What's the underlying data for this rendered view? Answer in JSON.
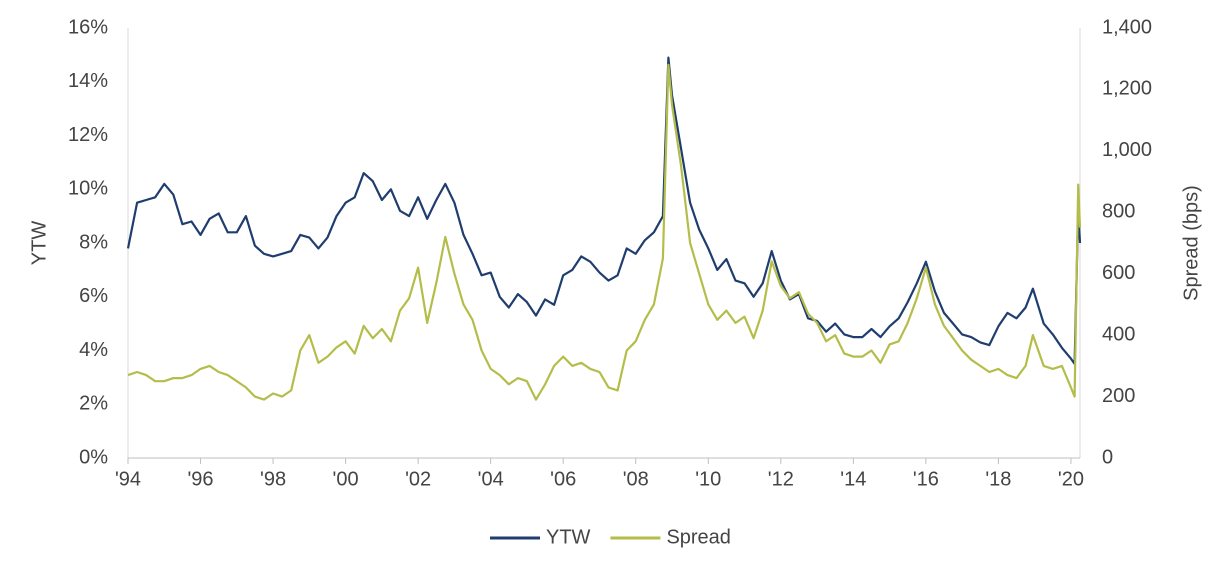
{
  "chart_data": {
    "type": "line",
    "x": [
      1994.0,
      1994.25,
      1994.5,
      1994.75,
      1995.0,
      1995.25,
      1995.5,
      1995.75,
      1996.0,
      1996.25,
      1996.5,
      1996.75,
      1997.0,
      1997.25,
      1997.5,
      1997.75,
      1998.0,
      1998.25,
      1998.5,
      1998.75,
      1999.0,
      1999.25,
      1999.5,
      1999.75,
      2000.0,
      2000.25,
      2000.5,
      2000.75,
      2001.0,
      2001.25,
      2001.5,
      2001.75,
      2002.0,
      2002.25,
      2002.5,
      2002.75,
      2003.0,
      2003.25,
      2003.5,
      2003.75,
      2004.0,
      2004.25,
      2004.5,
      2004.75,
      2005.0,
      2005.25,
      2005.5,
      2005.75,
      2006.0,
      2006.25,
      2006.5,
      2006.75,
      2007.0,
      2007.25,
      2007.5,
      2007.75,
      2008.0,
      2008.25,
      2008.5,
      2008.75,
      2008.9,
      2009.0,
      2009.25,
      2009.5,
      2009.75,
      2010.0,
      2010.25,
      2010.5,
      2010.75,
      2011.0,
      2011.25,
      2011.5,
      2011.75,
      2012.0,
      2012.25,
      2012.5,
      2012.75,
      2013.0,
      2013.25,
      2013.5,
      2013.75,
      2014.0,
      2014.25,
      2014.5,
      2014.75,
      2015.0,
      2015.25,
      2015.5,
      2015.75,
      2016.0,
      2016.25,
      2016.5,
      2016.75,
      2017.0,
      2017.25,
      2017.5,
      2017.75,
      2018.0,
      2018.25,
      2018.5,
      2018.75,
      2018.95,
      2019.25,
      2019.5,
      2019.75,
      2020.0,
      2020.1,
      2020.2,
      2020.25
    ],
    "series": [
      {
        "name": "YTW",
        "color": "#1f3d6e",
        "axis": "y",
        "values": [
          7.8,
          9.5,
          9.6,
          9.7,
          10.2,
          9.8,
          8.7,
          8.8,
          8.3,
          8.9,
          9.1,
          8.4,
          8.4,
          9.0,
          7.9,
          7.6,
          7.5,
          7.6,
          7.7,
          8.3,
          8.2,
          7.8,
          8.2,
          9.0,
          9.5,
          9.7,
          10.6,
          10.3,
          9.6,
          10.0,
          9.2,
          9.0,
          9.7,
          8.9,
          9.6,
          10.2,
          9.5,
          8.3,
          7.6,
          6.8,
          6.9,
          6.0,
          5.6,
          6.1,
          5.8,
          5.3,
          5.9,
          5.7,
          6.8,
          7.0,
          7.5,
          7.3,
          6.9,
          6.6,
          6.8,
          7.8,
          7.6,
          8.1,
          8.4,
          9.0,
          14.9,
          13.5,
          11.5,
          9.5,
          8.5,
          7.8,
          7.0,
          7.4,
          6.6,
          6.5,
          6.0,
          6.5,
          7.7,
          6.6,
          5.9,
          6.1,
          5.2,
          5.1,
          4.7,
          5.0,
          4.6,
          4.5,
          4.5,
          4.8,
          4.5,
          4.9,
          5.2,
          5.8,
          6.5,
          7.3,
          6.2,
          5.4,
          5.0,
          4.6,
          4.5,
          4.3,
          4.2,
          4.9,
          5.4,
          5.2,
          5.6,
          6.3,
          5.0,
          4.6,
          4.1,
          3.7,
          3.5,
          9.3,
          8.0
        ]
      },
      {
        "name": "Spread",
        "color": "#b5bd4a",
        "axis": "y2",
        "values": [
          270,
          280,
          270,
          250,
          250,
          260,
          260,
          270,
          290,
          300,
          280,
          270,
          250,
          230,
          200,
          190,
          210,
          200,
          220,
          350,
          400,
          310,
          330,
          360,
          380,
          340,
          430,
          390,
          420,
          380,
          480,
          520,
          620,
          440,
          570,
          720,
          600,
          500,
          450,
          350,
          290,
          270,
          240,
          260,
          250,
          190,
          240,
          300,
          330,
          300,
          310,
          290,
          280,
          230,
          220,
          350,
          380,
          450,
          500,
          650,
          1280,
          1150,
          950,
          700,
          600,
          500,
          450,
          480,
          440,
          460,
          390,
          480,
          640,
          560,
          520,
          540,
          470,
          440,
          380,
          400,
          340,
          330,
          330,
          350,
          310,
          370,
          380,
          440,
          520,
          620,
          500,
          430,
          390,
          350,
          320,
          300,
          280,
          290,
          270,
          260,
          300,
          400,
          300,
          290,
          300,
          230,
          200,
          890,
          750
        ]
      }
    ],
    "xlim": [
      1994,
      2020.25
    ],
    "xticks": [
      {
        "value": 1994,
        "label": "'94"
      },
      {
        "value": 1996,
        "label": "'96"
      },
      {
        "value": 1998,
        "label": "'98"
      },
      {
        "value": 2000,
        "label": "'00"
      },
      {
        "value": 2002,
        "label": "'02"
      },
      {
        "value": 2004,
        "label": "'04"
      },
      {
        "value": 2006,
        "label": "'06"
      },
      {
        "value": 2008,
        "label": "'08"
      },
      {
        "value": 2010,
        "label": "'10"
      },
      {
        "value": 2012,
        "label": "'12"
      },
      {
        "value": 2014,
        "label": "'14"
      },
      {
        "value": 2016,
        "label": "'16"
      },
      {
        "value": 2018,
        "label": "'18"
      },
      {
        "value": 2020,
        "label": "'20"
      }
    ],
    "ylim": [
      0,
      16
    ],
    "yticks": [
      {
        "value": 0,
        "label": "0%"
      },
      {
        "value": 2,
        "label": "2%"
      },
      {
        "value": 4,
        "label": "4%"
      },
      {
        "value": 6,
        "label": "6%"
      },
      {
        "value": 8,
        "label": "8%"
      },
      {
        "value": 10,
        "label": "10%"
      },
      {
        "value": 12,
        "label": "12%"
      },
      {
        "value": 14,
        "label": "14%"
      },
      {
        "value": 16,
        "label": "16%"
      }
    ],
    "y2lim": [
      0,
      1400
    ],
    "y2ticks": [
      0,
      200,
      400,
      600,
      800,
      {
        "value": 1000,
        "label": "1,000"
      },
      {
        "value": 1200,
        "label": "1,200"
      },
      {
        "value": 1400,
        "label": "1,400"
      }
    ],
    "ylabel": "YTW",
    "y2label": "Spread (bps)",
    "legend": "bottom"
  }
}
